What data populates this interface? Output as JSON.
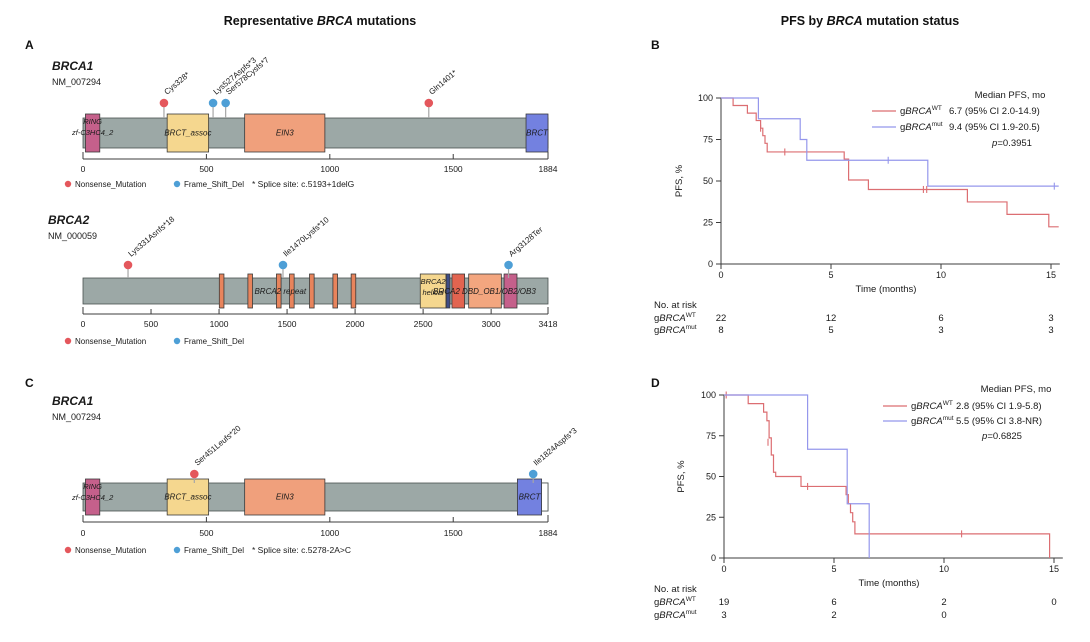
{
  "left_title": {
    "prefix": "Representative ",
    "italic": "BRCA",
    "suffix": " mutations"
  },
  "right_title": {
    "prefix": "PFS by ",
    "italic": "BRCA",
    "suffix": " mutation status"
  },
  "panel_labels": {
    "a": "A",
    "b": "B",
    "c": "C",
    "d": "D"
  },
  "colors": {
    "text": "#1a1a1a",
    "nonsense": "#e4575c",
    "frameshift": "#4e9fd6",
    "km_wt": "#dc6e72",
    "km_mut": "#9597ec",
    "gene_bar": "#9ca8a6",
    "bar_border": "#49514f",
    "domain_border": "#3a3a3a",
    "stem": "#a6a6a6",
    "axis": "#3c3c3c"
  },
  "chart_data": [
    {
      "type": "lollipop",
      "panel": "A",
      "gene": "BRCA1",
      "transcript": "NM_007294",
      "xmax": 1884,
      "ticks": [
        0,
        500,
        1000,
        1500,
        1884
      ],
      "domains": [
        {
          "lines": [
            "RING",
            "zf-C3HC4_2"
          ],
          "start": 10,
          "end": 68,
          "color": "#c5608b"
        },
        {
          "lines": [
            "BRCT_assoc"
          ],
          "start": 341,
          "end": 509,
          "color": "#f5d78f"
        },
        {
          "lines": [
            "EIN3"
          ],
          "start": 655,
          "end": 980,
          "color": "#f0a07c"
        },
        {
          "lines": [
            "BRCT"
          ],
          "start": 1795,
          "end": 1884,
          "color": "#7381e0"
        }
      ],
      "mutations": [
        {
          "label": "Cys328*",
          "pos": 328,
          "type": "nonsense"
        },
        {
          "label": "Lys527Aspfs*3",
          "pos": 527,
          "type": "frameshift"
        },
        {
          "label": "Ser578Cysfs*7",
          "pos": 578,
          "type": "frameshift"
        },
        {
          "label": "Gln1401*",
          "pos": 1401,
          "type": "nonsense"
        }
      ],
      "legend": [
        {
          "label": "Nonsense_Mutation",
          "type": "nonsense"
        },
        {
          "label": "Frame_Shift_Del",
          "type": "frameshift"
        }
      ],
      "note": "* Splice site: c.5193+1delG"
    },
    {
      "type": "lollipop",
      "panel": "A",
      "gene": "BRCA2",
      "transcript": "NM_000059",
      "xmax": 3418,
      "ticks": [
        0,
        500,
        1000,
        1500,
        2000,
        2500,
        3000,
        3418
      ],
      "domains": [
        {
          "start": 1002,
          "end": 1036,
          "color": "#e8845c"
        },
        {
          "start": 1212,
          "end": 1246,
          "color": "#e8845c"
        },
        {
          "start": 1422,
          "end": 1456,
          "color": "#e8845c"
        },
        {
          "start": 1518,
          "end": 1552,
          "color": "#e8845c"
        },
        {
          "start": 1665,
          "end": 1699,
          "color": "#e8845c"
        },
        {
          "start": 1837,
          "end": 1871,
          "color": "#e8845c"
        },
        {
          "start": 1971,
          "end": 2005,
          "color": "#e8845c"
        },
        {
          "lines": [
            "BRCA2",
            "helical"
          ],
          "start": 2479,
          "end": 2668,
          "color": "#f5d78f"
        },
        {
          "start": 2670,
          "end": 2697,
          "color": "#3f4c85"
        },
        {
          "start": 2712,
          "end": 2805,
          "color": "#e26450"
        },
        {
          "start": 2835,
          "end": 3075,
          "color": "#f3a67f"
        },
        {
          "start": 3095,
          "end": 3190,
          "color": "#c5608b"
        }
      ],
      "bar_label": {
        "text": "BRCA2 repeat",
        "pos": 1450
      },
      "span_label": {
        "text": "BRCA2 DBD_OB1/OB2/OB3",
        "start": 2712,
        "end": 3190
      },
      "mutations": [
        {
          "label": "Lys331Asnfs*18",
          "pos": 331,
          "type": "nonsense"
        },
        {
          "label": "Ile1470Lysfs*10",
          "pos": 1470,
          "type": "frameshift"
        },
        {
          "label": "Arg3128Ter",
          "pos": 3128,
          "type": "frameshift"
        }
      ],
      "legend": [
        {
          "label": "Nonsense_Mutation",
          "type": "nonsense"
        },
        {
          "label": "Frame_Shift_Del",
          "type": "frameshift"
        }
      ],
      "note": ""
    },
    {
      "type": "lollipop",
      "panel": "C",
      "gene": "BRCA1",
      "transcript": "NM_007294",
      "xmax": 1884,
      "ticks": [
        0,
        500,
        1000,
        1500,
        1884
      ],
      "domains": [
        {
          "lines": [
            "RING",
            "zf-C3HC4_2"
          ],
          "start": 10,
          "end": 68,
          "color": "#c5608b"
        },
        {
          "lines": [
            "BRCT_assoc"
          ],
          "start": 341,
          "end": 509,
          "color": "#f5d78f"
        },
        {
          "lines": [
            "EIN3"
          ],
          "start": 655,
          "end": 980,
          "color": "#f0a07c"
        },
        {
          "lines": [
            "BRCT"
          ],
          "start": 1760,
          "end": 1858,
          "color": "#7381e0"
        }
      ],
      "tail": {
        "start": 1858,
        "end": 1884
      },
      "mutations": [
        {
          "label": "Ser451Leufs*20",
          "pos": 451,
          "type": "nonsense"
        },
        {
          "label": "Ile1824Aspfs*3",
          "pos": 1824,
          "type": "frameshift"
        }
      ],
      "legend": [
        {
          "label": "Nonsense_Mutation",
          "type": "nonsense"
        },
        {
          "label": "Frame_Shift_Del",
          "type": "frameshift"
        }
      ],
      "note": "* Splice site: c.5278-2A>C"
    },
    {
      "type": "km",
      "panel": "B",
      "ylabel": "PFS, %",
      "xlabel": "Time (months)",
      "yticks": [
        0,
        25,
        50,
        75,
        100
      ],
      "xticks": [
        0,
        5,
        10,
        15
      ],
      "xmax": 15.4,
      "legend_header": "Median PFS, mo",
      "p_label": "p",
      "p_value": "=0.3951",
      "series": [
        {
          "prefix": "g",
          "italic": "BRCA",
          "sup": "WT",
          "color_key": "km_wt",
          "median": "6.7 (95% CI 2.0-14.9)",
          "steps": [
            [
              0,
              100
            ],
            [
              0.55,
              95.5
            ],
            [
              1.2,
              90.9
            ],
            [
              1.6,
              86.4
            ],
            [
              1.8,
              81.8
            ],
            [
              1.9,
              77.3
            ],
            [
              2.0,
              72.7
            ],
            [
              2.1,
              67.5
            ],
            [
              5.6,
              63.2
            ],
            [
              5.8,
              50.6
            ],
            [
              6.7,
              44.9
            ],
            [
              11.2,
              37.4
            ],
            [
              13.0,
              29.9
            ],
            [
              14.9,
              22.4
            ],
            [
              15.35,
              22.4
            ]
          ],
          "censors": [
            [
              1.8,
              81.8
            ],
            [
              2.9,
              67.5
            ],
            [
              9.2,
              44.9
            ],
            [
              9.35,
              44.9
            ]
          ]
        },
        {
          "prefix": "g",
          "italic": "BRCA",
          "sup": "mut",
          "color_key": "km_mut",
          "median": "9.4 (95% CI 1.9-20.5)",
          "steps": [
            [
              0,
              100
            ],
            [
              1.7,
              87.5
            ],
            [
              3.6,
              75
            ],
            [
              3.9,
              62.5
            ],
            [
              9.4,
              46.9
            ],
            [
              15.35,
              46.9
            ]
          ],
          "censors": [
            [
              7.6,
              62.5
            ],
            [
              15.15,
              46.9
            ]
          ]
        }
      ],
      "at_risk": {
        "label": "No. at risk",
        "rows": [
          {
            "prefix": "g",
            "italic": "BRCA",
            "sup": "WT",
            "counts": [
              "22",
              "12",
              "6",
              "3"
            ]
          },
          {
            "prefix": "g",
            "italic": "BRCA",
            "sup": "mut",
            "counts": [
              "8",
              "5",
              "3",
              "3"
            ]
          }
        ]
      }
    },
    {
      "type": "km",
      "panel": "D",
      "ylabel": "PFS, %",
      "xlabel": "Time (months)",
      "yticks": [
        0,
        25,
        50,
        75,
        100
      ],
      "xticks": [
        0,
        5,
        10,
        15
      ],
      "xmax": 15.4,
      "legend_header": "Median PFS, mo",
      "p_label": "p",
      "p_value": "=0.6825",
      "series": [
        {
          "prefix": "g",
          "italic": "BRCA",
          "sup": "WT",
          "color_key": "km_wt",
          "median": "2.8 (95% CI 1.9-5.8)",
          "steps": [
            [
              0,
              100
            ],
            [
              1.1,
              94.7
            ],
            [
              1.8,
              89.5
            ],
            [
              1.95,
              84.2
            ],
            [
              2.05,
              73.7
            ],
            [
              2.15,
              63.2
            ],
            [
              2.25,
              52.6
            ],
            [
              2.35,
              50.0
            ],
            [
              3.5,
              43.9
            ],
            [
              5.55,
              38.9
            ],
            [
              5.65,
              33.3
            ],
            [
              5.75,
              27.8
            ],
            [
              5.85,
              22.2
            ],
            [
              5.95,
              14.8
            ],
            [
              14.7,
              14.8
            ],
            [
              14.8,
              0
            ]
          ],
          "censors": [
            [
              0.1,
              100
            ],
            [
              2.0,
              71
            ],
            [
              3.8,
              43.9
            ],
            [
              10.8,
              14.8
            ]
          ]
        },
        {
          "prefix": "g",
          "italic": "BRCA",
          "sup": "mut",
          "color_key": "km_mut",
          "median": "5.5 (95% CI 3.8-NR)",
          "steps": [
            [
              0,
              100
            ],
            [
              3.8,
              66.7
            ],
            [
              5.6,
              33.3
            ],
            [
              6.6,
              0
            ]
          ],
          "censors": []
        }
      ],
      "at_risk": {
        "label": "No. at risk",
        "rows": [
          {
            "prefix": "g",
            "italic": "BRCA",
            "sup": "WT",
            "counts": [
              "19",
              "6",
              "2",
              "0"
            ]
          },
          {
            "prefix": "g",
            "italic": "BRCA",
            "sup": "mut",
            "counts": [
              "3",
              "2",
              "0",
              ""
            ]
          }
        ]
      }
    }
  ]
}
